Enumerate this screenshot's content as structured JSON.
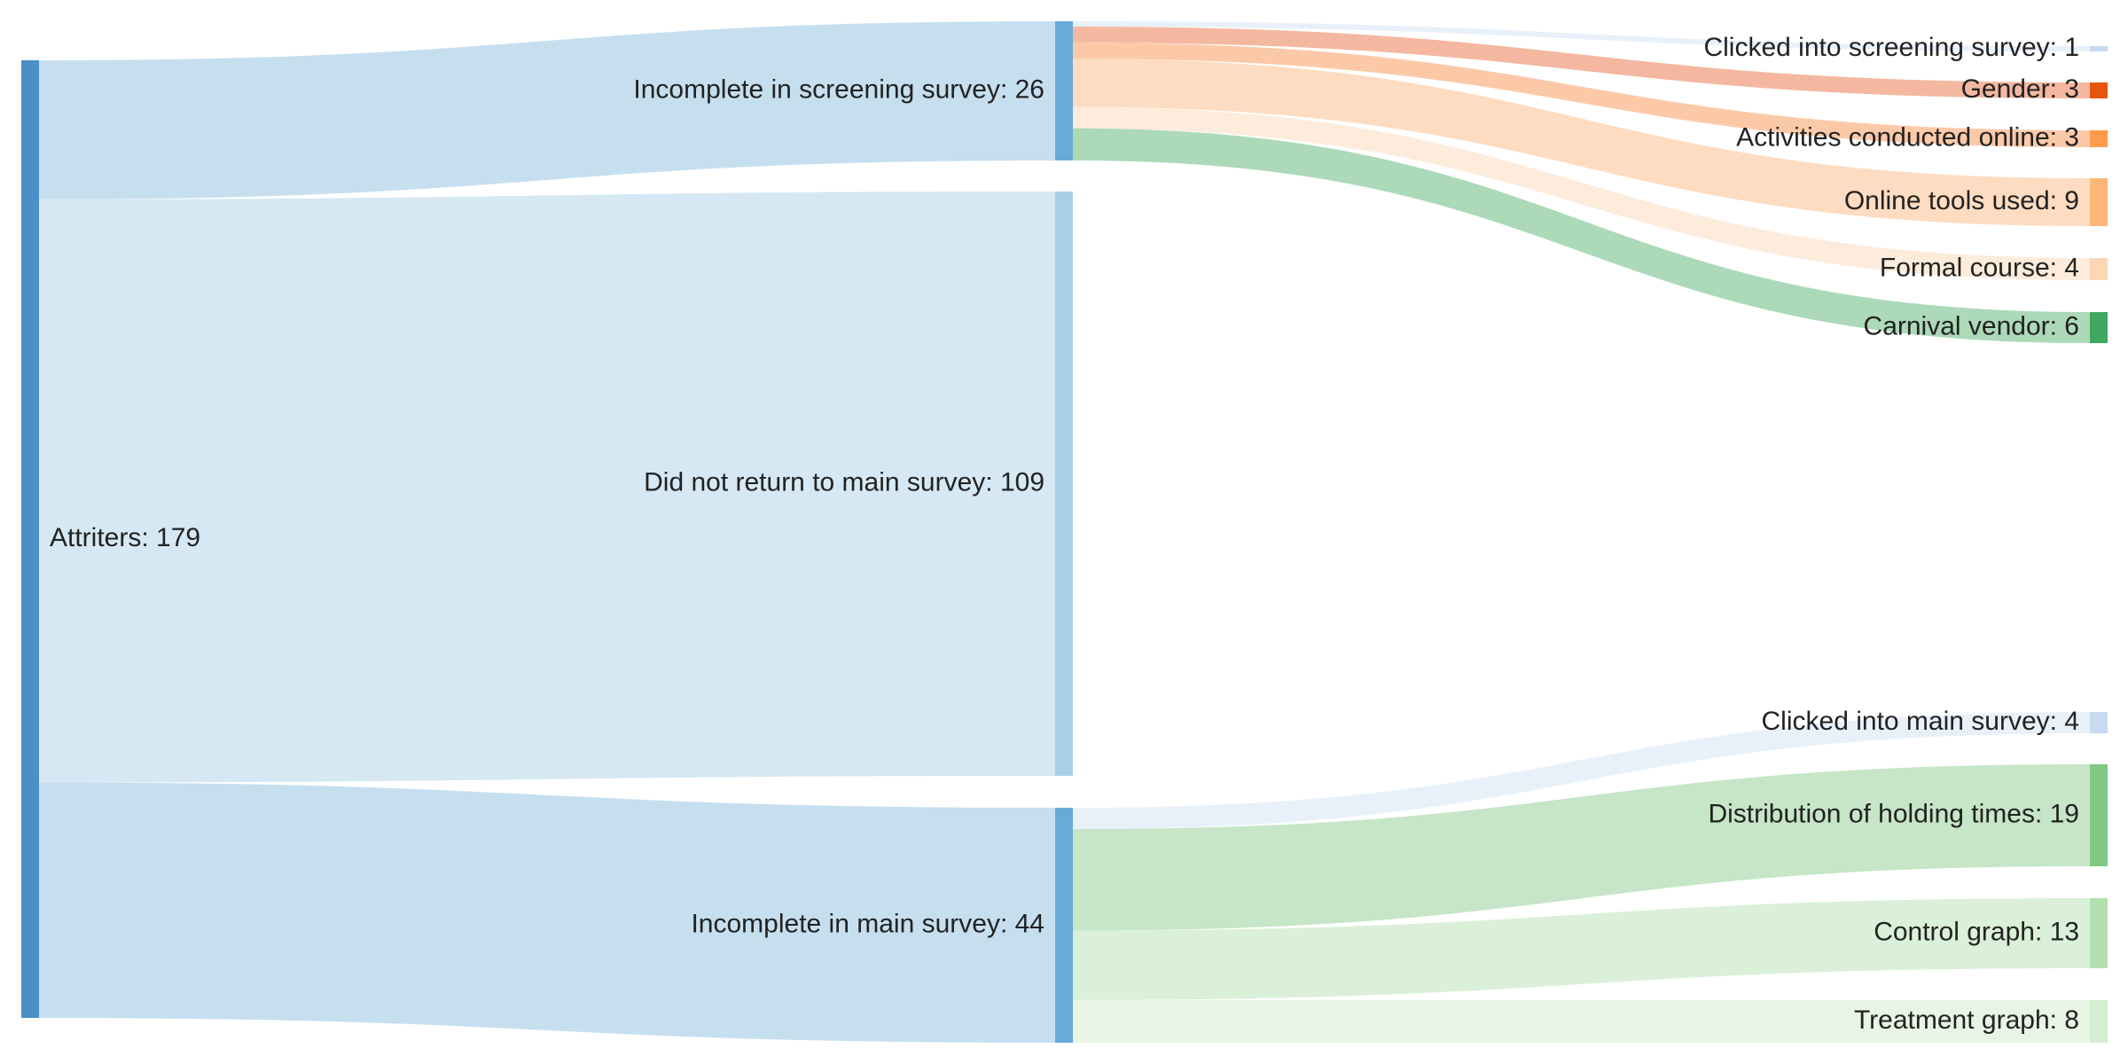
{
  "chart_data": {
    "type": "sankey",
    "nodes": [
      {
        "id": "attriters",
        "label": "Attriters: 179",
        "value": 179,
        "column": 0,
        "color": "#4a8fc6"
      },
      {
        "id": "incomplete_screening",
        "label": "Incomplete in screening survey: 26",
        "value": 26,
        "column": 1,
        "color": "#6aaad8"
      },
      {
        "id": "did_not_return",
        "label": "Did not return to main survey: 109",
        "value": 109,
        "column": 1,
        "color": "#a9cfe8"
      },
      {
        "id": "incomplete_main",
        "label": "Incomplete in main survey: 44",
        "value": 44,
        "column": 1,
        "color": "#6aaad8"
      },
      {
        "id": "clicked_screening",
        "label": "Clicked into screening survey: 1",
        "value": 1,
        "column": 2,
        "color": "#c6dbef"
      },
      {
        "id": "gender",
        "label": "Gender: 3",
        "value": 3,
        "column": 2,
        "color": "#e6550d"
      },
      {
        "id": "activities_online",
        "label": "Activities conducted online: 3",
        "value": 3,
        "column": 2,
        "color": "#fd9a4c"
      },
      {
        "id": "online_tools",
        "label": "Online tools used: 9",
        "value": 9,
        "column": 2,
        "color": "#fdb67a"
      },
      {
        "id": "formal_course",
        "label": "Formal course: 4",
        "value": 4,
        "column": 2,
        "color": "#fdd7b5"
      },
      {
        "id": "carnival_vendor",
        "label": "Carnival vendor: 6",
        "value": 6,
        "column": 2,
        "color": "#41a85f"
      },
      {
        "id": "clicked_main",
        "label": "Clicked into main survey: 4",
        "value": 4,
        "column": 2,
        "color": "#c6dbef"
      },
      {
        "id": "holding_times",
        "label": "Distribution of holding times: 19",
        "value": 19,
        "column": 2,
        "color": "#80c883"
      },
      {
        "id": "control_graph",
        "label": "Control graph: 13",
        "value": 13,
        "column": 2,
        "color": "#b2dfae"
      },
      {
        "id": "treatment_graph",
        "label": "Treatment graph: 8",
        "value": 8,
        "column": 2,
        "color": "#d5edd2"
      }
    ],
    "links": [
      {
        "source": "attriters",
        "target": "incomplete_screening",
        "value": 26,
        "color": "#c6dfef"
      },
      {
        "source": "attriters",
        "target": "did_not_return",
        "value": 109,
        "color": "#d6e8f3"
      },
      {
        "source": "attriters",
        "target": "incomplete_main",
        "value": 44,
        "color": "#c6dfef"
      },
      {
        "source": "incomplete_screening",
        "target": "clicked_screening",
        "value": 1,
        "color": "#e8f0f9"
      },
      {
        "source": "incomplete_screening",
        "target": "gender",
        "value": 3,
        "color": "#f4b8a0"
      },
      {
        "source": "incomplete_screening",
        "target": "activities_online",
        "value": 3,
        "color": "#fcc9a8"
      },
      {
        "source": "incomplete_screening",
        "target": "online_tools",
        "value": 9,
        "color": "#fddcc2"
      },
      {
        "source": "incomplete_screening",
        "target": "formal_course",
        "value": 4,
        "color": "#fdebdc"
      },
      {
        "source": "incomplete_screening",
        "target": "carnival_vendor",
        "value": 6,
        "color": "#acd9b8"
      },
      {
        "source": "incomplete_main",
        "target": "clicked_main",
        "value": 4,
        "color": "#e8f0f9"
      },
      {
        "source": "incomplete_main",
        "target": "holding_times",
        "value": 19,
        "color": "#c6e6c7"
      },
      {
        "source": "incomplete_main",
        "target": "control_graph",
        "value": 13,
        "color": "#daf0d8"
      },
      {
        "source": "incomplete_main",
        "target": "treatment_graph",
        "value": 8,
        "color": "#e8f5e5"
      }
    ]
  }
}
